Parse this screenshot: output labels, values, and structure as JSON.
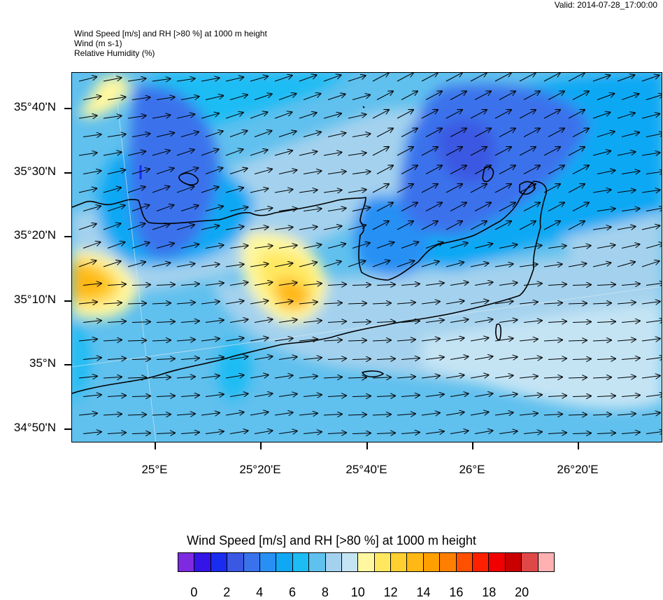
{
  "valid": "Valid: 2014-07-28_17:00:00",
  "header": {
    "line1": "Wind Speed [m/s] and RH [>80 %] at 1000 m height",
    "line2": "Wind   (m s-1)",
    "line3": "Relative Humidity   (%)"
  },
  "lat_labels": [
    "35°40'N",
    "35°30'N",
    "35°20'N",
    "35°10'N",
    "35°N",
    "34°50'N"
  ],
  "lon_labels": [
    "25°E",
    "25°20'E",
    "25°40'E",
    "26°E",
    "26°20'E"
  ],
  "colorbar": {
    "title": "Wind Speed [m/s] and RH [>80 %] at 1000 m height",
    "colors": [
      "#7d2ae0",
      "#3414e6",
      "#1a2cf0",
      "#3a58e2",
      "#3a72ec",
      "#2890f4",
      "#10a8f4",
      "#1cbcf4",
      "#60c0ee",
      "#a4d2ee",
      "#c4e4f4",
      "#fff8a0",
      "#ffe860",
      "#ffd030",
      "#ffb814",
      "#ffa000",
      "#ff8000",
      "#ff5000",
      "#ff2000",
      "#f00000",
      "#c80000",
      "#e04848",
      "#ffb0b0"
    ],
    "labels": [
      "0",
      "2",
      "4",
      "6",
      "8",
      "10",
      "12",
      "14",
      "16",
      "18",
      "20"
    ]
  }
}
